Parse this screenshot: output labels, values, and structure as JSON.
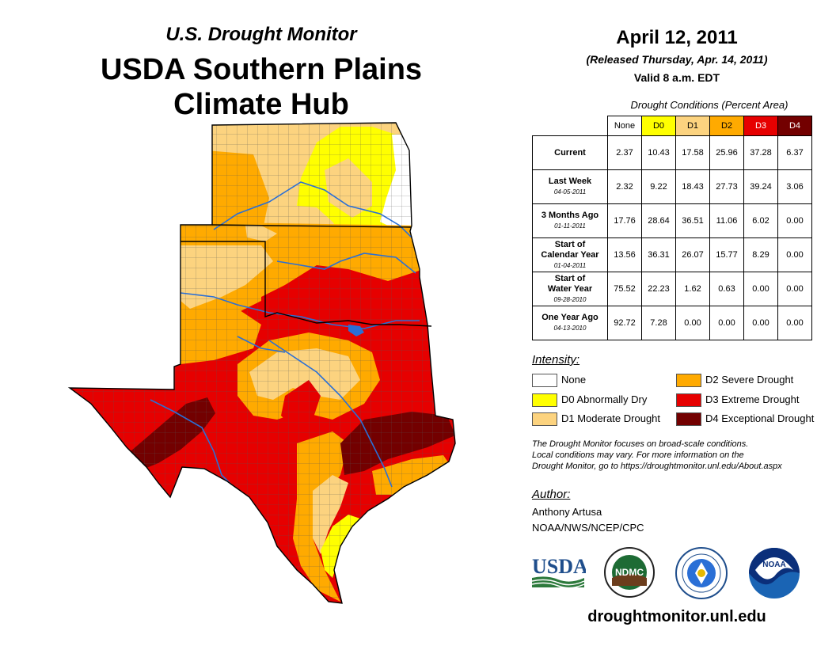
{
  "header": {
    "supertitle": "U.S. Drought Monitor",
    "title_line1": "USDA Southern Plains",
    "title_line2": "Climate Hub"
  },
  "info": {
    "date": "April 12, 2011",
    "released": "(Released Thursday, Apr. 14, 2011)",
    "valid": "Valid 8 a.m. EDT"
  },
  "table": {
    "caption": "Drought Conditions (Percent Area)",
    "columns": [
      "None",
      "D0",
      "D1",
      "D2",
      "D3",
      "D4"
    ],
    "rows": [
      {
        "label": "Current",
        "date": "",
        "values": [
          "2.37",
          "10.43",
          "17.58",
          "25.96",
          "37.28",
          "6.37"
        ]
      },
      {
        "label": "Last Week",
        "date": "04-05-2011",
        "values": [
          "2.32",
          "9.22",
          "18.43",
          "27.73",
          "39.24",
          "3.06"
        ]
      },
      {
        "label": "3 Months Ago",
        "date": "01-11-2011",
        "values": [
          "17.76",
          "28.64",
          "36.51",
          "11.06",
          "6.02",
          "0.00"
        ]
      },
      {
        "label": "Start of Calendar Year",
        "date": "01-04-2011",
        "values": [
          "13.56",
          "36.31",
          "26.07",
          "15.77",
          "8.29",
          "0.00"
        ]
      },
      {
        "label": "Start of Water Year",
        "date": "09-28-2010",
        "values": [
          "75.52",
          "22.23",
          "1.62",
          "0.63",
          "0.00",
          "0.00"
        ]
      },
      {
        "label": "One Year Ago",
        "date": "04-13-2010",
        "values": [
          "92.72",
          "7.28",
          "0.00",
          "0.00",
          "0.00",
          "0.00"
        ]
      }
    ]
  },
  "legend": {
    "title": "Intensity:",
    "items": [
      {
        "label": "None",
        "color": "#ffffff"
      },
      {
        "label": "D0 Abnormally Dry",
        "color": "#ffff00"
      },
      {
        "label": "D1 Moderate Drought",
        "color": "#fcd37f"
      },
      {
        "label": "D2 Severe Drought",
        "color": "#ffaa00"
      },
      {
        "label": "D3 Extreme Drought",
        "color": "#e60000"
      },
      {
        "label": "D4 Exceptional Drought",
        "color": "#730000"
      }
    ]
  },
  "note": {
    "line1": "The Drought Monitor focuses on broad-scale conditions.",
    "line2": "Local conditions may vary. For more information on the",
    "line3": "Drought Monitor, go to https://droughtmonitor.unl.edu/About.aspx"
  },
  "author": {
    "title": "Author:",
    "name": "Anthony Artusa",
    "org": "NOAA/NWS/NCEP/CPC"
  },
  "logos": {
    "usda": "USDA",
    "ndmc": "NDMC",
    "noaa": "NOAA"
  },
  "footer": {
    "url": "droughtmonitor.unl.edu"
  }
}
